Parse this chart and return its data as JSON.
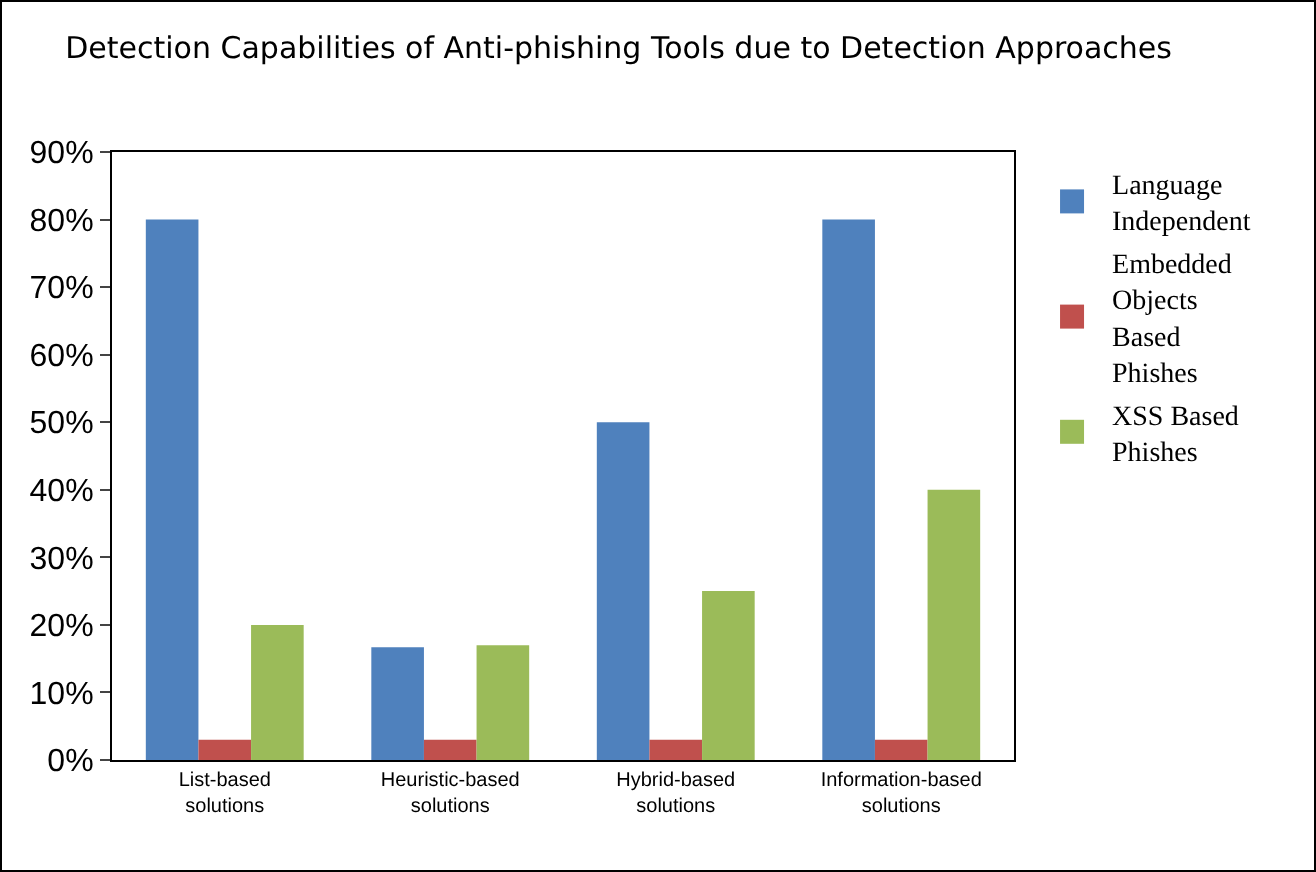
{
  "chart_data": {
    "type": "bar",
    "title": "Detection Capabilities of Anti-phishing Tools due to Detection Approaches",
    "categories": [
      "List-based solutions",
      "Heuristic-based solutions",
      "Hybrid-based solutions",
      "Information-based solutions"
    ],
    "series": [
      {
        "name": "Language Independent",
        "color": "#4f81bd",
        "values": [
          80,
          16.7,
          50,
          80
        ]
      },
      {
        "name": "Embedded Objects Based Phishes",
        "color": "#c0504d",
        "values": [
          3,
          3,
          3,
          3
        ]
      },
      {
        "name": "XSS Based Phishes",
        "color": "#9bbb59",
        "values": [
          20,
          17,
          25,
          40
        ]
      }
    ],
    "ylim": [
      0,
      90
    ],
    "yticks": [
      {
        "value": 0,
        "label": "0%"
      },
      {
        "value": 10,
        "label": "10%"
      },
      {
        "value": 20,
        "label": "20%"
      },
      {
        "value": 30,
        "label": "30%"
      },
      {
        "value": 40,
        "label": "40%"
      },
      {
        "value": 50,
        "label": "50%"
      },
      {
        "value": 60,
        "label": "60%"
      },
      {
        "value": 70,
        "label": "70%"
      },
      {
        "value": 80,
        "label": "80%"
      },
      {
        "value": 90,
        "label": "90%"
      }
    ],
    "grid": false,
    "legend": "right"
  }
}
